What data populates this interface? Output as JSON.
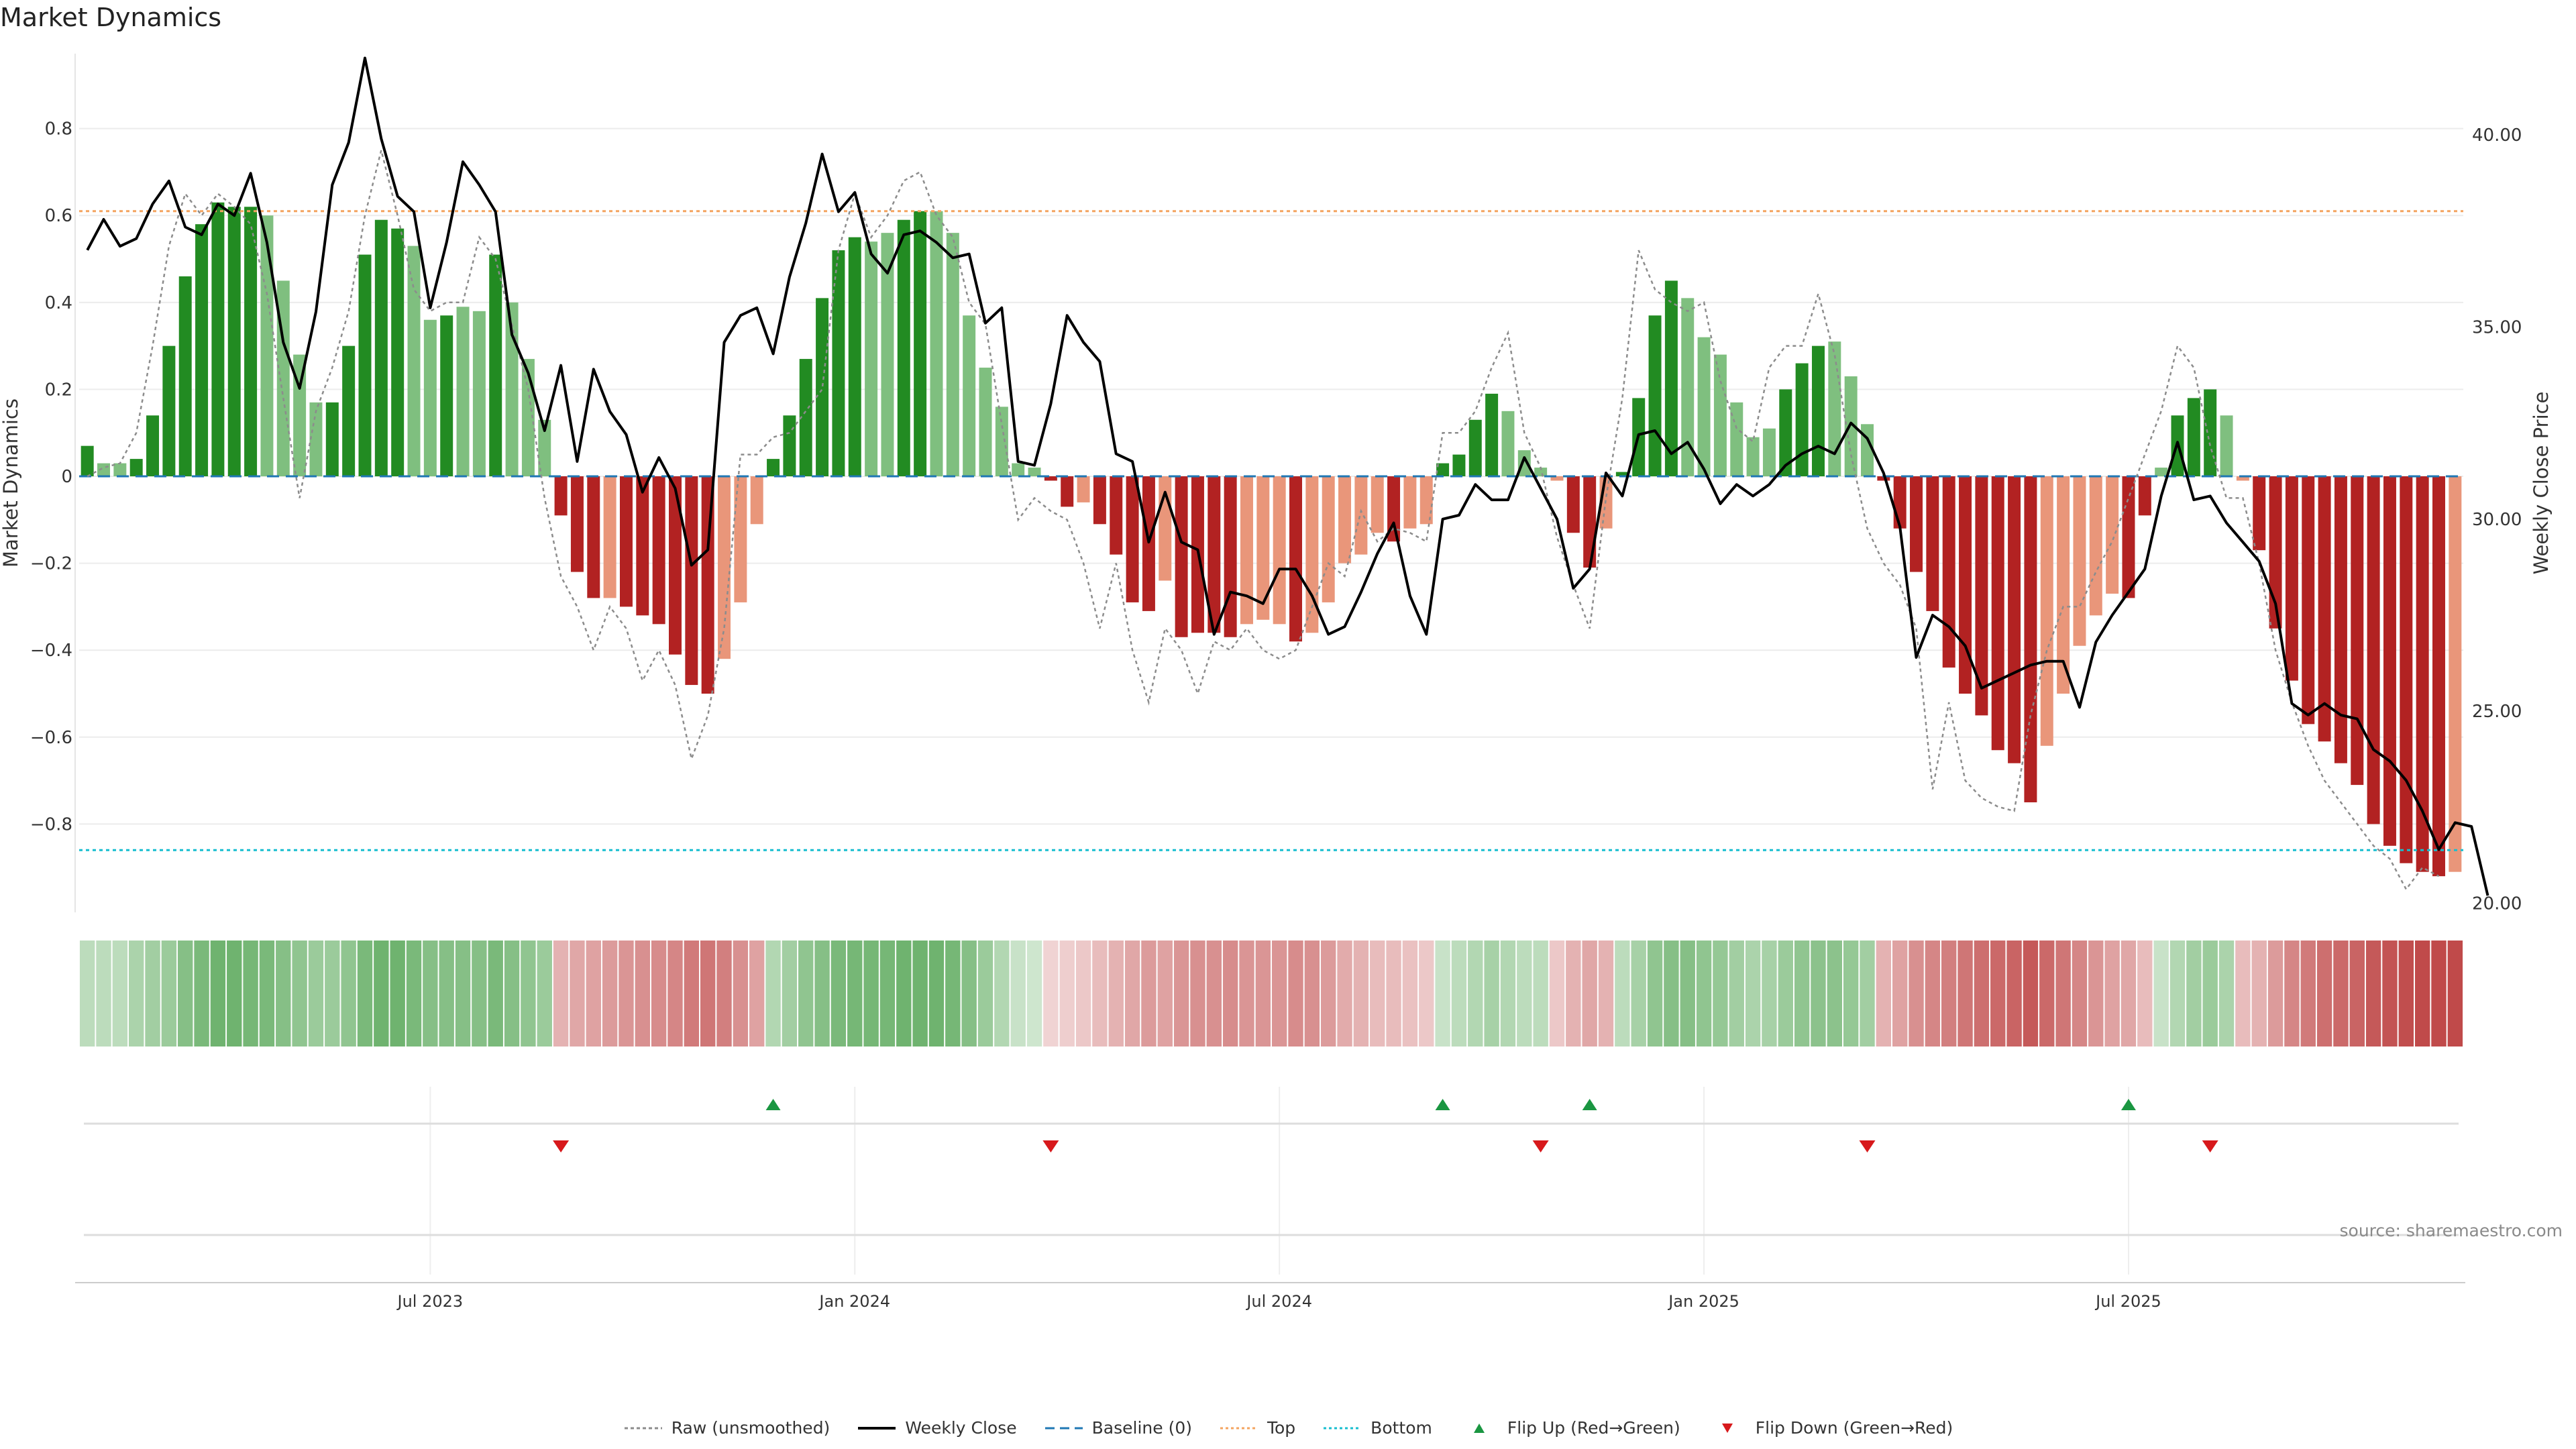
{
  "page": {
    "title": "Market Dynamics",
    "source": "source: sharemaestro.com"
  },
  "colors": {
    "strong_green": "#228b22",
    "light_green": "#7fbf7f",
    "strong_red": "#b22222",
    "light_red": "#e9967a",
    "close_line": "#000000",
    "raw_line": "#8c8c8c",
    "baseline": "#1f77b4",
    "top": "#f4a460",
    "bottom": "#17becf",
    "flip_up": "#1a9641",
    "flip_down": "#d7191c"
  },
  "legend": [
    {
      "label": "Raw (unsmoothed)",
      "key": "raw"
    },
    {
      "label": "Weekly Close",
      "key": "close"
    },
    {
      "label": "Baseline (0)",
      "key": "baseline"
    },
    {
      "label": "Top",
      "key": "top"
    },
    {
      "label": "Bottom",
      "key": "bottom"
    },
    {
      "label": "Flip Up (Red→Green)",
      "key": "flip_up"
    },
    {
      "label": "Flip Down (Green→Red)",
      "key": "flip_down"
    }
  ],
  "chart_data": {
    "type": "bar",
    "title": "Market Dynamics",
    "ylabel": "Market Dynamics",
    "y2label": "Weekly Close Price",
    "ylim": [
      -1.0,
      0.98
    ],
    "y2lim": [
      19.8,
      42.2
    ],
    "yticks": [
      0.8,
      0.6,
      0.4,
      0.2,
      0,
      -0.2,
      -0.4,
      -0.6,
      -0.8
    ],
    "ytick_labels": [
      "0.8",
      "0.6",
      "0.4",
      "0.2",
      "0",
      "−0.2",
      "−0.4",
      "−0.6",
      "−0.8"
    ],
    "y2ticks": [
      40,
      35,
      30,
      25,
      20
    ],
    "y2tick_labels": [
      "40.00",
      "35.00",
      "30.00",
      "25.00",
      "20.00"
    ],
    "date_ticks": [
      {
        "label": "Jul 2023",
        "week": 21
      },
      {
        "label": "Jan 2024",
        "week": 47
      },
      {
        "label": "Jul 2024",
        "week": 73
      },
      {
        "label": "Jan 2025",
        "week": 99
      },
      {
        "label": "Jul 2025",
        "week": 125
      }
    ],
    "top_line": 0.61,
    "bottom_line": -0.86,
    "baseline": 0,
    "values": [
      0.07,
      0.03,
      0.03,
      0.04,
      0.14,
      0.3,
      0.46,
      0.58,
      0.63,
      0.62,
      0.62,
      0.6,
      0.45,
      0.28,
      0.17,
      0.17,
      0.3,
      0.51,
      0.59,
      0.57,
      0.53,
      0.36,
      0.37,
      0.39,
      0.38,
      0.51,
      0.4,
      0.27,
      0.13,
      -0.09,
      -0.22,
      -0.28,
      -0.28,
      -0.3,
      -0.32,
      -0.34,
      -0.41,
      -0.48,
      -0.5,
      -0.42,
      -0.29,
      -0.11,
      0.04,
      0.14,
      0.27,
      0.41,
      0.52,
      0.55,
      0.54,
      0.56,
      0.59,
      0.61,
      0.61,
      0.56,
      0.37,
      0.25,
      0.16,
      0.03,
      0.02,
      -0.01,
      -0.07,
      -0.06,
      -0.11,
      -0.18,
      -0.29,
      -0.31,
      -0.24,
      -0.37,
      -0.36,
      -0.36,
      -0.37,
      -0.34,
      -0.33,
      -0.34,
      -0.38,
      -0.36,
      -0.29,
      -0.2,
      -0.18,
      -0.13,
      -0.15,
      -0.12,
      -0.11,
      0.03,
      0.05,
      0.13,
      0.19,
      0.15,
      0.06,
      0.02,
      -0.01,
      -0.13,
      -0.21,
      -0.12,
      0.01,
      0.18,
      0.37,
      0.45,
      0.41,
      0.32,
      0.28,
      0.17,
      0.09,
      0.11,
      0.2,
      0.26,
      0.3,
      0.31,
      0.23,
      0.12,
      -0.01,
      -0.12,
      -0.22,
      -0.31,
      -0.44,
      -0.5,
      -0.55,
      -0.63,
      -0.66,
      -0.75,
      -0.62,
      -0.5,
      -0.39,
      -0.32,
      -0.27,
      -0.28,
      -0.09,
      0.02,
      0.14,
      0.18,
      0.2,
      0.14,
      -0.01,
      -0.17,
      -0.35,
      -0.47,
      -0.57,
      -0.61,
      -0.66,
      -0.71,
      -0.8,
      -0.85,
      -0.89,
      -0.91,
      -0.92,
      -0.91
    ],
    "bar_intensity": [
      "strong",
      "light",
      "light",
      "strong",
      "strong",
      "strong",
      "strong",
      "strong",
      "strong",
      "strong",
      "strong",
      "light",
      "light",
      "light",
      "light",
      "strong",
      "strong",
      "strong",
      "strong",
      "strong",
      "light",
      "light",
      "strong",
      "light",
      "light",
      "strong",
      "light",
      "light",
      "light",
      "strong",
      "strong",
      "strong",
      "light",
      "strong",
      "strong",
      "strong",
      "strong",
      "strong",
      "strong",
      "light",
      "light",
      "light",
      "strong",
      "strong",
      "strong",
      "strong",
      "strong",
      "strong",
      "light",
      "light",
      "strong",
      "strong",
      "light",
      "light",
      "light",
      "light",
      "light",
      "light",
      "light",
      "strong",
      "strong",
      "light",
      "strong",
      "strong",
      "strong",
      "strong",
      "light",
      "strong",
      "strong",
      "strong",
      "strong",
      "light",
      "light",
      "light",
      "strong",
      "light",
      "light",
      "light",
      "light",
      "light",
      "strong",
      "light",
      "light",
      "strong",
      "strong",
      "strong",
      "strong",
      "light",
      "light",
      "light",
      "light",
      "strong",
      "strong",
      "light",
      "strong",
      "strong",
      "strong",
      "strong",
      "light",
      "light",
      "light",
      "light",
      "light",
      "light",
      "strong",
      "strong",
      "strong",
      "light",
      "light",
      "light",
      "strong",
      "strong",
      "strong",
      "strong",
      "strong",
      "strong",
      "strong",
      "strong",
      "strong",
      "strong",
      "light",
      "light",
      "light",
      "light",
      "light",
      "strong",
      "strong",
      "light",
      "strong",
      "strong",
      "strong",
      "light",
      "light",
      "strong",
      "strong",
      "strong",
      "strong",
      "strong",
      "strong",
      "strong",
      "strong",
      "strong",
      "strong",
      "strong",
      "strong",
      "light"
    ],
    "series": [
      {
        "name": "Raw (unsmoothed)",
        "values": [
          0.0,
          0.02,
          0.03,
          0.1,
          0.3,
          0.53,
          0.65,
          0.6,
          0.65,
          0.62,
          0.58,
          0.42,
          0.18,
          -0.05,
          0.15,
          0.25,
          0.38,
          0.6,
          0.75,
          0.6,
          0.43,
          0.38,
          0.4,
          0.4,
          0.55,
          0.5,
          0.35,
          0.2,
          -0.05,
          -0.23,
          -0.3,
          -0.4,
          -0.3,
          -0.35,
          -0.47,
          -0.4,
          -0.48,
          -0.65,
          -0.55,
          -0.35,
          0.05,
          0.05,
          0.09,
          0.1,
          0.15,
          0.2,
          0.52,
          0.65,
          0.55,
          0.6,
          0.68,
          0.7,
          0.6,
          0.55,
          0.4,
          0.35,
          0.12,
          -0.1,
          -0.05,
          -0.08,
          -0.1,
          -0.2,
          -0.35,
          -0.2,
          -0.4,
          -0.52,
          -0.35,
          -0.4,
          -0.5,
          -0.38,
          -0.4,
          -0.35,
          -0.4,
          -0.42,
          -0.4,
          -0.3,
          -0.2,
          -0.23,
          -0.08,
          -0.15,
          -0.12,
          -0.13,
          -0.15,
          0.1,
          0.1,
          0.15,
          0.25,
          0.33,
          0.1,
          0.02,
          -0.14,
          -0.25,
          -0.35,
          -0.05,
          0.18,
          0.52,
          0.43,
          0.4,
          0.38,
          0.4,
          0.22,
          0.11,
          0.08,
          0.25,
          0.3,
          0.3,
          0.42,
          0.28,
          0.05,
          -0.12,
          -0.2,
          -0.25,
          -0.35,
          -0.72,
          -0.52,
          -0.7,
          -0.74,
          -0.76,
          -0.77,
          -0.55,
          -0.4,
          -0.3,
          -0.3,
          -0.22,
          -0.15,
          -0.05,
          0.05,
          0.15,
          0.3,
          0.25,
          0.07,
          -0.05,
          -0.05,
          -0.2,
          -0.4,
          -0.52,
          -0.62,
          -0.7,
          -0.75,
          -0.8,
          -0.85,
          -0.88,
          -0.95,
          -0.9,
          -0.92
        ]
      },
      {
        "name": "Weekly Close",
        "values": [
          37.0,
          37.8,
          37.1,
          37.3,
          38.2,
          38.8,
          37.6,
          37.4,
          38.2,
          37.9,
          39.0,
          37.2,
          34.6,
          33.4,
          35.4,
          38.7,
          39.8,
          42.0,
          39.9,
          38.4,
          38.0,
          35.5,
          37.2,
          39.3,
          38.7,
          38.0,
          34.8,
          33.8,
          32.3,
          34.0,
          31.5,
          33.9,
          32.8,
          32.2,
          30.7,
          31.6,
          30.8,
          28.8,
          29.2,
          34.6,
          35.3,
          35.5,
          34.3,
          36.3,
          37.7,
          39.5,
          38.0,
          38.5,
          36.9,
          36.4,
          37.4,
          37.5,
          37.2,
          36.8,
          36.9,
          35.1,
          35.5,
          31.5,
          31.4,
          33.0,
          35.3,
          34.6,
          34.1,
          31.7,
          31.5,
          29.4,
          30.7,
          29.4,
          29.2,
          27.0,
          28.1,
          28.0,
          27.8,
          28.7,
          28.7,
          28.0,
          27.0,
          27.2,
          28.1,
          29.1,
          29.9,
          28.0,
          27.0,
          30.0,
          30.1,
          30.9,
          30.5,
          30.5,
          31.6,
          30.8,
          30.0,
          28.2,
          28.7,
          31.2,
          30.6,
          32.2,
          32.3,
          31.7,
          32.0,
          31.3,
          30.4,
          30.9,
          30.6,
          30.9,
          31.4,
          31.7,
          31.9,
          31.7,
          32.5,
          32.1,
          31.2,
          29.8,
          26.4,
          27.5,
          27.2,
          26.7,
          25.6,
          25.8,
          26.0,
          26.2,
          26.3,
          26.3,
          25.1,
          26.8,
          27.5,
          28.1,
          28.7,
          30.6,
          32.0,
          30.5,
          30.6,
          29.9,
          29.4,
          28.9,
          27.8,
          25.2,
          24.9,
          25.2,
          24.9,
          24.8,
          24.0,
          23.7,
          23.2,
          22.4,
          21.4,
          22.1,
          22.0,
          20.2
        ]
      }
    ],
    "heat_strip": {
      "label": "",
      "alphas": [
        0.3,
        0.3,
        0.3,
        0.38,
        0.42,
        0.45,
        0.55,
        0.6,
        0.65,
        0.65,
        0.62,
        0.6,
        0.55,
        0.5,
        0.45,
        0.45,
        0.5,
        0.6,
        0.65,
        0.65,
        0.6,
        0.55,
        0.55,
        0.55,
        0.55,
        0.6,
        0.55,
        0.5,
        0.45,
        0.35,
        0.4,
        0.42,
        0.45,
        0.48,
        0.5,
        0.52,
        0.55,
        0.6,
        0.62,
        0.58,
        0.5,
        0.42,
        0.35,
        0.42,
        0.5,
        0.55,
        0.6,
        0.62,
        0.62,
        0.62,
        0.65,
        0.65,
        0.65,
        0.62,
        0.55,
        0.45,
        0.35,
        0.25,
        0.22,
        0.2,
        0.22,
        0.25,
        0.3,
        0.35,
        0.4,
        0.45,
        0.42,
        0.48,
        0.5,
        0.5,
        0.52,
        0.48,
        0.48,
        0.48,
        0.52,
        0.5,
        0.45,
        0.38,
        0.35,
        0.3,
        0.3,
        0.28,
        0.25,
        0.25,
        0.3,
        0.35,
        0.4,
        0.35,
        0.3,
        0.3,
        0.25,
        0.35,
        0.4,
        0.35,
        0.3,
        0.4,
        0.5,
        0.55,
        0.55,
        0.5,
        0.48,
        0.42,
        0.38,
        0.4,
        0.45,
        0.5,
        0.52,
        0.52,
        0.48,
        0.42,
        0.35,
        0.42,
        0.5,
        0.55,
        0.58,
        0.62,
        0.65,
        0.68,
        0.7,
        0.75,
        0.68,
        0.62,
        0.55,
        0.48,
        0.42,
        0.4,
        0.3,
        0.25,
        0.35,
        0.42,
        0.45,
        0.38,
        0.3,
        0.35,
        0.45,
        0.55,
        0.6,
        0.65,
        0.68,
        0.7,
        0.75,
        0.78,
        0.8,
        0.82,
        0.82,
        0.82
      ]
    },
    "flip_markers": [
      {
        "type": "flip_up",
        "week": 42
      },
      {
        "type": "flip_up",
        "week": 83
      },
      {
        "type": "flip_up",
        "week": 92
      },
      {
        "type": "flip_up",
        "week": 125
      },
      {
        "type": "flip_down",
        "week": 29
      },
      {
        "type": "flip_down",
        "week": 59
      },
      {
        "type": "flip_down",
        "week": 89
      },
      {
        "type": "flip_down",
        "week": 109
      },
      {
        "type": "flip_down",
        "week": 130
      }
    ]
  }
}
